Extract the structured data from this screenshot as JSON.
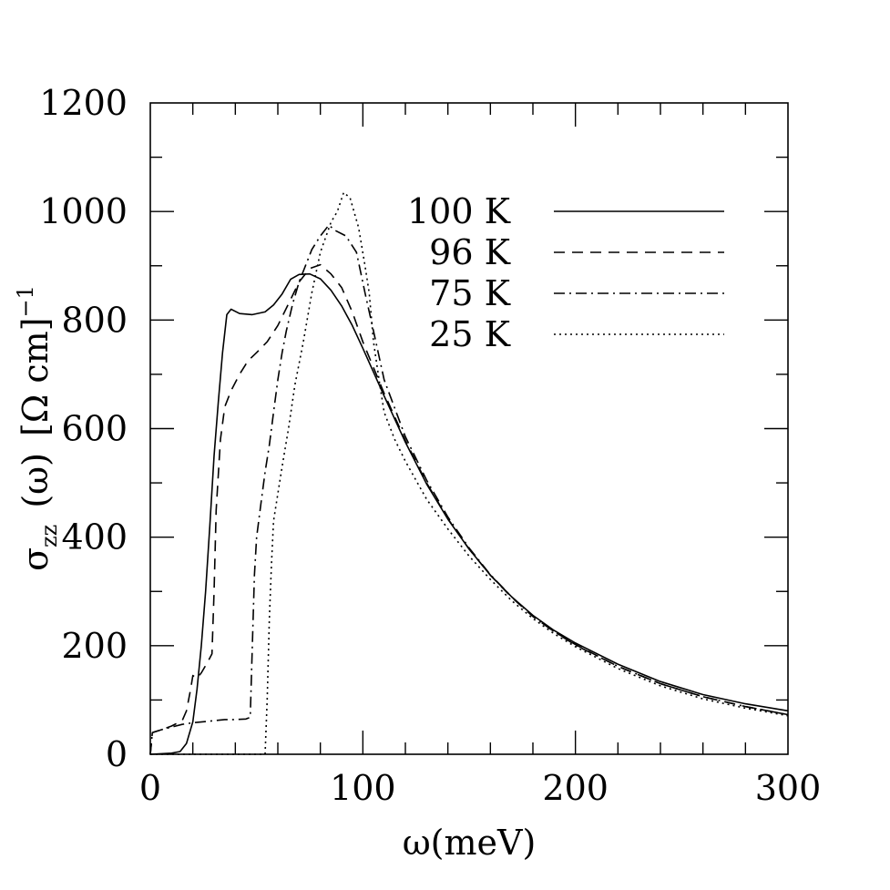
{
  "chart_data": {
    "type": "line",
    "xlabel": "ω(meV)",
    "ylabel": {
      "sigma": "σ",
      "subscript": "zz",
      "arg": "(ω)",
      "units": "[Ω cm]",
      "exponent": "−1"
    },
    "xlim": [
      0,
      300
    ],
    "ylim": [
      0,
      1200
    ],
    "xticks": [
      "0",
      "100",
      "200",
      "300"
    ],
    "yticks": [
      "0",
      "200",
      "400",
      "600",
      "800",
      "1000",
      "1200"
    ],
    "grid": false,
    "legend_position": "top-right",
    "series": [
      {
        "name": "100 K",
        "dash": "solid",
        "points": [
          [
            0,
            0
          ],
          [
            5,
            1
          ],
          [
            10,
            2
          ],
          [
            14,
            5
          ],
          [
            17,
            20
          ],
          [
            20,
            60
          ],
          [
            22,
            120
          ],
          [
            24,
            200
          ],
          [
            26,
            300
          ],
          [
            28,
            420
          ],
          [
            30,
            550
          ],
          [
            32,
            650
          ],
          [
            34,
            740
          ],
          [
            36,
            810
          ],
          [
            38,
            820
          ],
          [
            42,
            812
          ],
          [
            48,
            810
          ],
          [
            54,
            815
          ],
          [
            58,
            828
          ],
          [
            62,
            848
          ],
          [
            66,
            875
          ],
          [
            70,
            884
          ],
          [
            75,
            885
          ],
          [
            80,
            876
          ],
          [
            85,
            855
          ],
          [
            90,
            826
          ],
          [
            95,
            790
          ],
          [
            100,
            748
          ],
          [
            110,
            660
          ],
          [
            120,
            575
          ],
          [
            130,
            498
          ],
          [
            140,
            433
          ],
          [
            150,
            378
          ],
          [
            160,
            330
          ],
          [
            170,
            290
          ],
          [
            180,
            256
          ],
          [
            190,
            228
          ],
          [
            200,
            205
          ],
          [
            220,
            166
          ],
          [
            240,
            134
          ],
          [
            260,
            110
          ],
          [
            280,
            93
          ],
          [
            300,
            80
          ]
        ]
      },
      {
        "name": "96 K",
        "dash": "dashed",
        "points": [
          [
            0,
            0
          ],
          [
            1,
            40
          ],
          [
            5,
            45
          ],
          [
            10,
            52
          ],
          [
            15,
            62
          ],
          [
            17,
            80
          ],
          [
            19,
            120
          ],
          [
            20,
            145
          ],
          [
            22,
            140
          ],
          [
            24,
            150
          ],
          [
            27,
            170
          ],
          [
            29,
            185
          ],
          [
            30,
            300
          ],
          [
            31,
            450
          ],
          [
            33,
            580
          ],
          [
            35,
            640
          ],
          [
            38,
            670
          ],
          [
            42,
            700
          ],
          [
            46,
            725
          ],
          [
            50,
            740
          ],
          [
            55,
            760
          ],
          [
            60,
            790
          ],
          [
            65,
            830
          ],
          [
            70,
            870
          ],
          [
            75,
            895
          ],
          [
            80,
            902
          ],
          [
            85,
            885
          ],
          [
            90,
            860
          ],
          [
            95,
            815
          ],
          [
            100,
            760
          ],
          [
            110,
            665
          ],
          [
            120,
            578
          ],
          [
            130,
            500
          ],
          [
            140,
            434
          ],
          [
            150,
            378
          ],
          [
            160,
            330
          ],
          [
            170,
            289
          ],
          [
            180,
            254
          ],
          [
            190,
            226
          ],
          [
            200,
            202
          ],
          [
            220,
            162
          ],
          [
            240,
            130
          ],
          [
            260,
            106
          ],
          [
            280,
            88
          ],
          [
            300,
            73
          ]
        ]
      },
      {
        "name": "75 K",
        "dash": "dashdot",
        "points": [
          [
            0,
            0
          ],
          [
            1,
            40
          ],
          [
            5,
            45
          ],
          [
            10,
            50
          ],
          [
            15,
            55
          ],
          [
            20,
            58
          ],
          [
            25,
            60
          ],
          [
            30,
            62
          ],
          [
            35,
            64
          ],
          [
            40,
            64
          ],
          [
            45,
            65
          ],
          [
            47,
            68
          ],
          [
            48,
            200
          ],
          [
            49,
            330
          ],
          [
            50,
            400
          ],
          [
            52,
            460
          ],
          [
            54,
            520
          ],
          [
            56,
            570
          ],
          [
            58,
            630
          ],
          [
            60,
            690
          ],
          [
            62,
            740
          ],
          [
            64,
            780
          ],
          [
            67,
            830
          ],
          [
            70,
            870
          ],
          [
            73,
            900
          ],
          [
            76,
            930
          ],
          [
            80,
            955
          ],
          [
            84,
            975
          ],
          [
            87,
            965
          ],
          [
            92,
            955
          ],
          [
            97,
            925
          ],
          [
            101,
            850
          ],
          [
            105,
            780
          ],
          [
            110,
            690
          ],
          [
            120,
            585
          ],
          [
            130,
            505
          ],
          [
            140,
            437
          ],
          [
            150,
            380
          ],
          [
            160,
            331
          ],
          [
            170,
            290
          ],
          [
            180,
            254
          ],
          [
            190,
            226
          ],
          [
            200,
            201
          ],
          [
            220,
            162
          ],
          [
            240,
            130
          ],
          [
            260,
            106
          ],
          [
            280,
            88
          ],
          [
            300,
            73
          ]
        ]
      },
      {
        "name": "25 K",
        "dash": "dotted",
        "points": [
          [
            0,
            0
          ],
          [
            10,
            0
          ],
          [
            20,
            0
          ],
          [
            30,
            0
          ],
          [
            40,
            0
          ],
          [
            50,
            0
          ],
          [
            54,
            0
          ],
          [
            55,
            100
          ],
          [
            56,
            250
          ],
          [
            57,
            350
          ],
          [
            58,
            430
          ],
          [
            60,
            480
          ],
          [
            62,
            530
          ],
          [
            65,
            600
          ],
          [
            68,
            680
          ],
          [
            72,
            760
          ],
          [
            76,
            850
          ],
          [
            80,
            925
          ],
          [
            85,
            980
          ],
          [
            88,
            1000
          ],
          [
            91,
            1035
          ],
          [
            94,
            1025
          ],
          [
            98,
            970
          ],
          [
            101,
            900
          ],
          [
            103,
            850
          ],
          [
            105,
            760
          ],
          [
            108,
            680
          ],
          [
            110,
            630
          ],
          [
            115,
            580
          ],
          [
            120,
            540
          ],
          [
            130,
            470
          ],
          [
            140,
            415
          ],
          [
            150,
            365
          ],
          [
            160,
            322
          ],
          [
            170,
            283
          ],
          [
            180,
            250
          ],
          [
            190,
            222
          ],
          [
            200,
            198
          ],
          [
            220,
            158
          ],
          [
            240,
            126
          ],
          [
            260,
            102
          ],
          [
            280,
            85
          ],
          [
            300,
            71
          ]
        ]
      }
    ]
  }
}
